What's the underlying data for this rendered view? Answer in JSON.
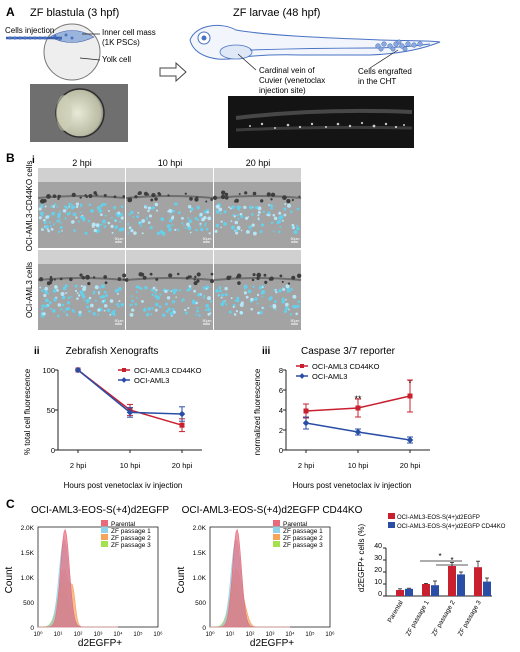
{
  "panel_a": {
    "letter": "A",
    "blastula_title": "ZF blastula (3 hpf)",
    "larvae_title": "ZF larvae (48 hpf)",
    "lbl_cells_injection": "Cells injection",
    "lbl_inner_mass_1": "Inner cell mass",
    "lbl_inner_mass_2": "(1K PSCs)",
    "lbl_yolk": "Yolk cell",
    "lbl_cardinal_1": "Cardinal vein of",
    "lbl_cardinal_2": "Cuvier (venetoclax",
    "lbl_cardinal_3": "injection site)",
    "lbl_engrafted_1": "Cells engrafted",
    "lbl_engrafted_2": "in the CHT"
  },
  "panel_b": {
    "letter": "B",
    "sub_i": "i",
    "col_headers": [
      "2 hpi",
      "10 hpi",
      "20 hpi"
    ],
    "row_labels": [
      "OCI-AML3-CD44KO cells",
      "OCI-AML3 cells"
    ],
    "scale_label": "50μm"
  },
  "panel_bii": {
    "sub": "ii",
    "title": "Zebrafish Xenografts",
    "ylabel": "% total cell fluorescence",
    "xlabel": "Hours post venetoclax iv injection",
    "legend": [
      "OCI-AML3 CD44KO",
      "OCI-AML3"
    ],
    "yticks": [
      "0",
      "50",
      "100"
    ]
  },
  "panel_biii": {
    "sub": "iii",
    "title": "Caspase 3/7 reporter",
    "ylabel": "normalized fluorescence",
    "xlabel": "Hours post venetoclax iv injection",
    "legend": [
      "OCI-AML3 CD44KO",
      "OCI-AML3"
    ],
    "yticks": [
      "0",
      "2",
      "4",
      "6",
      "8"
    ],
    "sig": [
      "**",
      "*"
    ]
  },
  "panel_c": {
    "letter": "C",
    "hist1_title": "OCI-AML3-EOS-S(+4)d2EGFP",
    "hist2_title": "OCI-AML3-EOS-S(+4)d2EGFP CD44KO",
    "ylabel": "Count",
    "xlabel": "d2EGFP+",
    "legend": [
      "Parental",
      "ZF passage 1",
      "ZF passage 2",
      "ZF passage 3"
    ],
    "yticks": [
      "0",
      "500",
      "1.0K",
      "1.5K",
      "2.0K"
    ],
    "xticks": [
      "10⁰",
      "10¹",
      "10²",
      "10³",
      "10⁴",
      "10⁵",
      "10⁶"
    ],
    "bar_ylabel": "d2EGFP+ cells (%)",
    "bar_legend": [
      "OCI-AML3-EOS-S(4+)d2EGFP",
      "OCI-AML3-EOS-S(4+)d2EGFP CD44KO"
    ],
    "bar_yticks": [
      "0",
      "10",
      "20",
      "30",
      "40"
    ],
    "bar_sig": [
      "*",
      "*"
    ]
  },
  "colors": {
    "red": "#c8202f",
    "blue": "#2a4ea6",
    "parental": "#e86a7a",
    "zf1": "#8fd3ea",
    "zf2": "#f7a35a",
    "zf3": "#a5e04d"
  },
  "chart_data": [
    {
      "type": "line",
      "title": "Zebrafish Xenografts",
      "xlabel": "Hours post venetoclax iv injection",
      "ylabel": "% total cell fluorescence",
      "categories": [
        "2 hpi",
        "10 hpi",
        "20 hpi"
      ],
      "ylim": [
        0,
        100
      ],
      "series": [
        {
          "name": "OCI-AML3 CD44KO",
          "values": [
            100,
            50,
            31
          ],
          "errors": [
            0,
            7,
            8
          ]
        },
        {
          "name": "OCI-AML3",
          "values": [
            100,
            47,
            45
          ],
          "errors": [
            0,
            6,
            9
          ]
        }
      ]
    },
    {
      "type": "line",
      "title": "Caspase 3/7 reporter",
      "xlabel": "Hours post venetoclax iv injection",
      "ylabel": "normalized fluorescence",
      "categories": [
        "2 hpi",
        "10 hpi",
        "20 hpi"
      ],
      "ylim": [
        0,
        8
      ],
      "series": [
        {
          "name": "OCI-AML3 CD44KO",
          "values": [
            3.9,
            4.2,
            5.4
          ],
          "errors": [
            0.7,
            0.9,
            1.6
          ]
        },
        {
          "name": "OCI-AML3",
          "values": [
            2.7,
            1.8,
            1.0
          ],
          "errors": [
            0.6,
            0.3,
            0.3
          ]
        }
      ]
    },
    {
      "type": "bar",
      "ylabel": "d2EGFP+ cells (%)",
      "categories": [
        "Parental",
        "ZF passage 1",
        "ZF passage 2",
        "ZF passage 3"
      ],
      "ylim": [
        0,
        40
      ],
      "series": [
        {
          "name": "OCI-AML3-EOS-S(4+)d2EGFP",
          "values": [
            5,
            10,
            25,
            24
          ],
          "errors": [
            1,
            0.5,
            3,
            5
          ]
        },
        {
          "name": "OCI-AML3-EOS-S(4+)d2EGFP CD44KO",
          "values": [
            6,
            9,
            18,
            12
          ],
          "errors": [
            0.5,
            3.5,
            2,
            3
          ]
        }
      ]
    }
  ]
}
